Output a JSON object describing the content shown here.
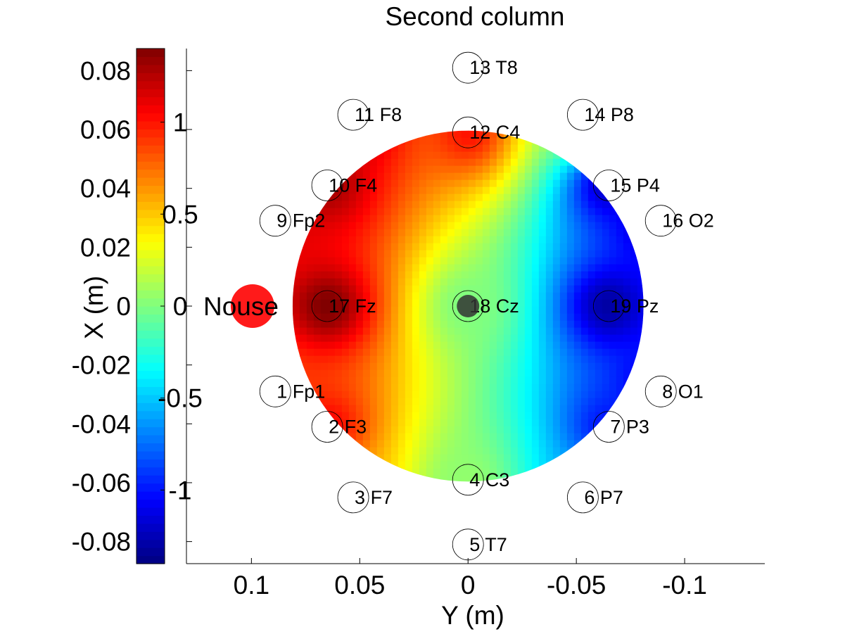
{
  "chart_data": {
    "type": "heatmap",
    "title": "Second column",
    "xlabel": "Y (m)",
    "ylabel": "X (m)",
    "xlim": [
      0.13,
      -0.137
    ],
    "ylim": [
      -0.0875,
      0.0875
    ],
    "x_ticks": [
      "0.1",
      "0.05",
      "0",
      "-0.05",
      "-0.1"
    ],
    "x_tick_values": [
      0.1,
      0.05,
      0,
      -0.05,
      -0.1
    ],
    "y_ticks": [
      "0.08",
      "0.06",
      "0.04",
      "0.02",
      "0",
      "-0.02",
      "-0.04",
      "-0.06",
      "-0.08"
    ],
    "y_tick_values": [
      0.08,
      0.06,
      0.04,
      0.02,
      0,
      -0.02,
      -0.04,
      -0.06,
      -0.08
    ],
    "colorbar": {
      "colormap": "jet",
      "range": [
        -1.4,
        1.4
      ],
      "ticks": [
        "1",
        "0.5",
        "0",
        "-0.5",
        "-1"
      ],
      "tick_values": [
        1,
        0.5,
        0,
        -0.5,
        -1
      ]
    },
    "grid": false,
    "head_radius": 0.09,
    "nose_label": "Nouse",
    "nose_color": "#ff1a1a",
    "electrodes": [
      {
        "label": "1 Fp1",
        "x": -0.029,
        "y": 0.089,
        "value": 0.9
      },
      {
        "label": "2 F3",
        "x": -0.041,
        "y": 0.065,
        "value": 1.05
      },
      {
        "label": "3 F7",
        "x": -0.065,
        "y": 0.053,
        "value": 0.6
      },
      {
        "label": "4 C3",
        "x": -0.059,
        "y": 0.0,
        "value": 0.05
      },
      {
        "label": "5 T7",
        "x": -0.081,
        "y": 0.0,
        "value": -0.2
      },
      {
        "label": "6 P7",
        "x": -0.065,
        "y": -0.053,
        "value": -0.6
      },
      {
        "label": "7 P3",
        "x": -0.041,
        "y": -0.065,
        "value": -1.0
      },
      {
        "label": "8 O1",
        "x": -0.029,
        "y": -0.089,
        "value": -1.2
      },
      {
        "label": "9 Fp2",
        "x": 0.029,
        "y": 0.089,
        "value": 1.15
      },
      {
        "label": "10 F4",
        "x": 0.041,
        "y": 0.065,
        "value": 1.3
      },
      {
        "label": "11 F8",
        "x": 0.065,
        "y": 0.053,
        "value": 1.35
      },
      {
        "label": "12 C4",
        "x": 0.059,
        "y": 0.0,
        "value": 1.0
      },
      {
        "label": "13 T8",
        "x": 0.081,
        "y": 0.0,
        "value": 0.6
      },
      {
        "label": "14 P8",
        "x": 0.065,
        "y": -0.053,
        "value": 0.2
      },
      {
        "label": "15 P4",
        "x": 0.041,
        "y": -0.065,
        "value": -1.2
      },
      {
        "label": "16 O2",
        "x": 0.029,
        "y": -0.089,
        "value": -1.3
      },
      {
        "label": "17 Fz",
        "x": 0.0,
        "y": 0.065,
        "value": 1.4
      },
      {
        "label": "18 Cz",
        "x": 0.0,
        "y": 0.0,
        "value": 0.0
      },
      {
        "label": "19 Pz",
        "x": 0.0,
        "y": -0.065,
        "value": -1.3
      }
    ]
  }
}
